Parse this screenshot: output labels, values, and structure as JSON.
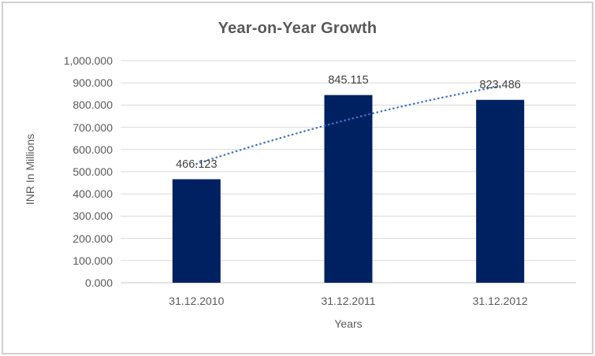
{
  "chart_data": {
    "type": "bar",
    "title": "Year-on-Year Growth",
    "xlabel": "Years",
    "ylabel": "INR In Millions",
    "categories": [
      "31.12.2010",
      "31.12.2011",
      "31.12.2012"
    ],
    "values": [
      466.123,
      845.115,
      823.486
    ],
    "data_labels": [
      "466.123",
      "845.115",
      "823.486"
    ],
    "ylim": [
      0,
      1000
    ],
    "ytick_step": 100,
    "ytick_labels": [
      "0.000",
      "100.000",
      "200.000",
      "300.000",
      "400.000",
      "500.000",
      "600.000",
      "700.000",
      "800.000",
      "900.000",
      "1,000.000"
    ],
    "grid": true,
    "legend": false,
    "trendline": {
      "style": "dotted",
      "color": "#4472C4",
      "values_estimated": [
        535,
        760,
        885
      ]
    },
    "colors": {
      "bar": "#002161",
      "gridline": "#d9d9d9",
      "axis_line": "#c6c6c6",
      "axis_text": "#595959",
      "data_label_text": "#404040",
      "title_text": "#595959",
      "chart_border": "#d1cfcf",
      "background": "#ffffff"
    }
  }
}
